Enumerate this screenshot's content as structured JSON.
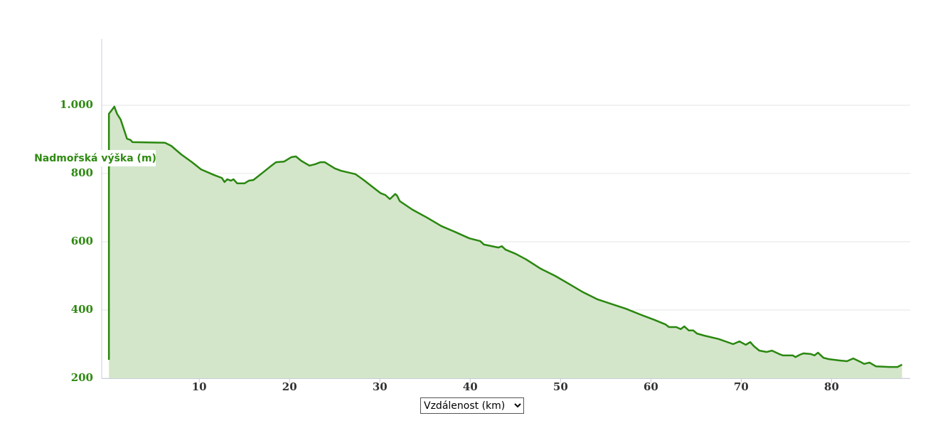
{
  "chart_data": {
    "type": "area",
    "y_label": "Nadmořská výška (m)",
    "x_label": "Vzdálenost (km)",
    "color": "#2a870f",
    "fill": "#d3e6ca",
    "xlim": [
      -0.8,
      88.7
    ],
    "ylim": [
      200,
      1200
    ],
    "xticks": [
      10,
      20,
      30,
      40,
      50,
      60,
      70,
      80
    ],
    "yticks": [
      200,
      400,
      600,
      800,
      {
        "value": 1000,
        "label": "1.000"
      }
    ],
    "grid": true,
    "x": [
      0,
      0,
      0.3,
      0.6,
      0.9,
      1.3,
      2.0,
      2.4,
      2.6,
      6.2,
      6.9,
      8.0,
      9.2,
      10.2,
      11.6,
      12.5,
      12.8,
      13.1,
      13.5,
      13.8,
      14.2,
      15.0,
      15.5,
      16.0,
      17.1,
      17.9,
      18.5,
      19.4,
      20.2,
      20.7,
      21.3,
      22.2,
      22.8,
      23.4,
      23.9,
      25.0,
      25.7,
      27.3,
      28.2,
      29.7,
      30.1,
      30.6,
      31.1,
      31.7,
      31.9,
      32.2,
      33.6,
      35.2,
      36.8,
      38.3,
      39.9,
      41.1,
      41.5,
      43.1,
      43.5,
      43.9,
      45.0,
      46.2,
      47.8,
      49.4,
      50.9,
      52.5,
      54.1,
      55.7,
      57.2,
      58.8,
      60.4,
      61.6,
      62.0,
      62.8,
      63.3,
      63.7,
      64.2,
      64.7,
      65.1,
      65.9,
      67.5,
      69.1,
      69.8,
      70.5,
      71.0,
      71.4,
      72.0,
      72.8,
      73.4,
      74.2,
      74.6,
      75.7,
      76.0,
      76.5,
      76.9,
      77.7,
      78.1,
      78.5,
      79.1,
      79.7,
      80.9,
      81.7,
      82.4,
      83.2,
      83.6,
      84.2,
      84.9,
      86.4,
      87.3,
      87.8
    ],
    "values": [
      254,
      975,
      985,
      996,
      975,
      958,
      902,
      898,
      892,
      890,
      881,
      856,
      833,
      812,
      796,
      787,
      775,
      783,
      779,
      783,
      771,
      771,
      779,
      781,
      804,
      821,
      833,
      835,
      848,
      850,
      837,
      823,
      827,
      833,
      833,
      815,
      808,
      798,
      781,
      750,
      742,
      737,
      725,
      740,
      735,
      719,
      694,
      671,
      646,
      629,
      610,
      602,
      592,
      583,
      587,
      577,
      565,
      548,
      521,
      500,
      477,
      452,
      431,
      417,
      404,
      387,
      371,
      358,
      350,
      350,
      344,
      352,
      340,
      340,
      331,
      325,
      315,
      300,
      308,
      298,
      306,
      294,
      281,
      277,
      281,
      271,
      267,
      267,
      262,
      269,
      273,
      271,
      267,
      275,
      260,
      256,
      252,
      250,
      258,
      248,
      242,
      246,
      235,
      233,
      233,
      240
    ]
  }
}
